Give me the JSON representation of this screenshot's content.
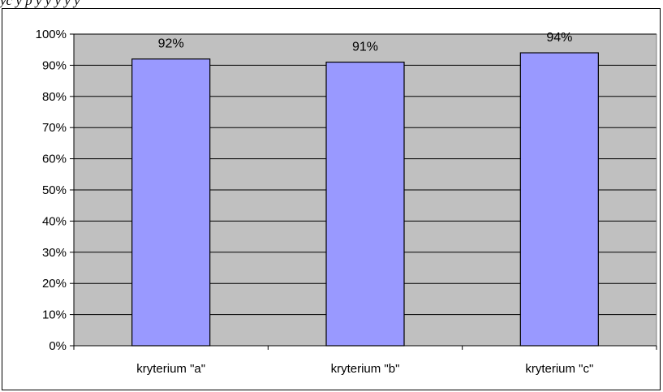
{
  "header": {
    "cut_text": "yc                     y p y              y    y y    y"
  },
  "colors": {
    "plot_background": "#c0c0c0",
    "bar_fill": "#9999ff",
    "bar_stroke": "#000000",
    "gridline": "#000000"
  },
  "chart_data": {
    "type": "bar",
    "categories": [
      "kryterium \"a\"",
      "kryterium \"b\"",
      "kryterium \"c\""
    ],
    "values": [
      92,
      91,
      94
    ],
    "data_labels": [
      "92%",
      "91%",
      "94%"
    ],
    "title": "",
    "xlabel": "",
    "ylabel": "",
    "ylim": [
      0,
      100
    ],
    "yticks": [
      0,
      10,
      20,
      30,
      40,
      50,
      60,
      70,
      80,
      90,
      100
    ],
    "ytick_labels": [
      "0%",
      "10%",
      "20%",
      "30%",
      "40%",
      "50%",
      "60%",
      "70%",
      "80%",
      "90%",
      "100%"
    ],
    "grid": true,
    "legend": "none"
  }
}
